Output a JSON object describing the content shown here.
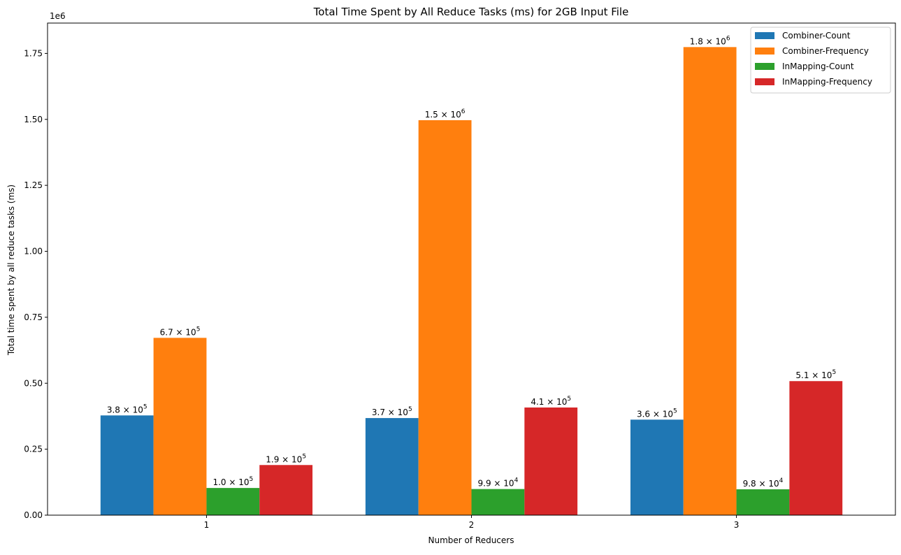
{
  "chart_data": {
    "type": "bar",
    "title": "Total Time Spent by All Reduce Tasks (ms) for 2GB Input File",
    "xlabel": "Number of Reducers",
    "ylabel": "Total time spent by all reduce tasks (ms)",
    "y_offset_label": "1e6",
    "categories": [
      "1",
      "2",
      "3"
    ],
    "ylim": [
      0,
      1865000
    ],
    "yticks": [
      0,
      250000,
      500000,
      750000,
      1000000,
      1250000,
      1500000,
      1750000
    ],
    "ytick_labels": [
      "0.00",
      "0.25",
      "0.50",
      "0.75",
      "1.00",
      "1.25",
      "1.50",
      "1.75"
    ],
    "legend_position": "top-right",
    "grid": false,
    "series": [
      {
        "name": "Combiner-Count",
        "color": "#1f77b4",
        "values": [
          378000,
          368000,
          362000
        ],
        "labels": [
          {
            "mantissa": "3.8",
            "exp": "5"
          },
          {
            "mantissa": "3.7",
            "exp": "5"
          },
          {
            "mantissa": "3.6",
            "exp": "5"
          }
        ]
      },
      {
        "name": "Combiner-Frequency",
        "color": "#ff7f0e",
        "values": [
          672000,
          1497000,
          1774000
        ],
        "labels": [
          {
            "mantissa": "6.7",
            "exp": "5"
          },
          {
            "mantissa": "1.5",
            "exp": "6"
          },
          {
            "mantissa": "1.8",
            "exp": "6"
          }
        ]
      },
      {
        "name": "InMapping-Count",
        "color": "#2ca02c",
        "values": [
          103000,
          99000,
          98000
        ],
        "labels": [
          {
            "mantissa": "1.0",
            "exp": "5"
          },
          {
            "mantissa": "9.9",
            "exp": "4"
          },
          {
            "mantissa": "9.8",
            "exp": "4"
          }
        ]
      },
      {
        "name": "InMapping-Frequency",
        "color": "#d62728",
        "values": [
          190000,
          408000,
          508000
        ],
        "labels": [
          {
            "mantissa": "1.9",
            "exp": "5"
          },
          {
            "mantissa": "4.1",
            "exp": "5"
          },
          {
            "mantissa": "5.1",
            "exp": "5"
          }
        ]
      }
    ]
  }
}
